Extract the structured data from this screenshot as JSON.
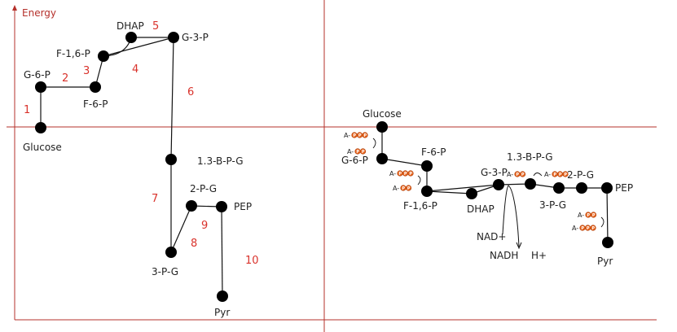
{
  "colors": {
    "axis": "#b5302b",
    "step": "#d9322b",
    "line": "#111111",
    "node": "#000000",
    "phosphate_fill": "#e8641c",
    "phosphate_stroke": "#a93d0b"
  },
  "axis_label": "Energy",
  "left": {
    "nodes": [
      {
        "id": "glucose",
        "label": "Glucose"
      },
      {
        "id": "g6p",
        "label": "G-6-P"
      },
      {
        "id": "f6p",
        "label": "F-6-P"
      },
      {
        "id": "f16p",
        "label": "F-1,6-P"
      },
      {
        "id": "dhap",
        "label": "DHAP"
      },
      {
        "id": "g3p",
        "label": "G-3-P"
      },
      {
        "id": "bpg",
        "label": "1.3-B-P-G"
      },
      {
        "id": "pg3",
        "label": "3-P-G"
      },
      {
        "id": "pg2",
        "label": "2-P-G"
      },
      {
        "id": "pep",
        "label": "PEP"
      },
      {
        "id": "pyr",
        "label": "Pyr"
      }
    ],
    "steps": [
      "1",
      "2",
      "3",
      "4",
      "5",
      "6",
      "7",
      "8",
      "9",
      "10"
    ]
  },
  "right": {
    "nodes": [
      {
        "id": "glucose",
        "label": "Glucose"
      },
      {
        "id": "g6p",
        "label": "G-6-P"
      },
      {
        "id": "f6p",
        "label": "F-6-P"
      },
      {
        "id": "f16p",
        "label": "F-1,6-P"
      },
      {
        "id": "dhap",
        "label": "DHAP"
      },
      {
        "id": "g3p",
        "label": "G-3-P"
      },
      {
        "id": "bpg",
        "label": "1.3-B-P-G"
      },
      {
        "id": "pg3",
        "label": "3-P-G"
      },
      {
        "id": "pg2",
        "label": "2-P-G"
      },
      {
        "id": "pep",
        "label": "PEP"
      },
      {
        "id": "pyr",
        "label": "Pyr"
      }
    ],
    "nad": "NAD+",
    "nadh": "NADH",
    "h": "H+",
    "atp_prefix": "A-",
    "phosphate_mark": "P"
  }
}
